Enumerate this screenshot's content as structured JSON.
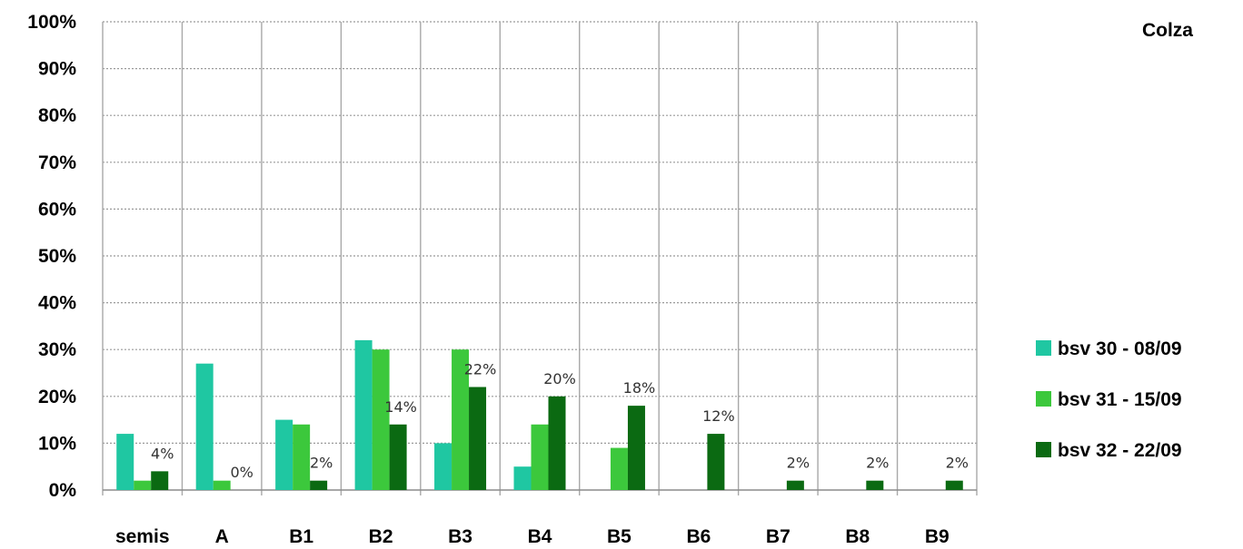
{
  "chart_data": {
    "type": "bar",
    "title": "Colza",
    "categories": [
      "semis",
      "A",
      "B1",
      "B2",
      "B3",
      "B4",
      "B5",
      "B6",
      "B7",
      "B8",
      "B9"
    ],
    "series": [
      {
        "name": "bsv 30 - 08/09",
        "color": "#1fc7a2",
        "values": [
          12,
          27,
          15,
          32,
          10,
          5,
          0,
          0,
          0,
          0,
          0
        ]
      },
      {
        "name": "bsv 31 - 15/09",
        "color": "#3cc83c",
        "values": [
          2,
          2,
          14,
          30,
          30,
          14,
          9,
          0,
          0,
          0,
          0
        ]
      },
      {
        "name": "bsv 32 - 22/09",
        "color": "#0b6a12",
        "values": [
          4,
          0,
          2,
          14,
          22,
          20,
          18,
          12,
          2,
          2,
          2
        ]
      }
    ],
    "data_labels": {
      "series": "bsv 32 - 22/09",
      "labels": [
        "4%",
        "0%",
        "2%",
        "14%",
        "22%",
        "20%",
        "18%",
        "12%",
        "2%",
        "2%",
        "2%"
      ]
    },
    "y_ticks": [
      "0%",
      "10%",
      "20%",
      "30%",
      "40%",
      "50%",
      "60%",
      "70%",
      "80%",
      "90%",
      "100%"
    ],
    "ylim": [
      0,
      100
    ],
    "xlabel": "",
    "ylabel": "",
    "grid": true,
    "legend_position": "right"
  }
}
